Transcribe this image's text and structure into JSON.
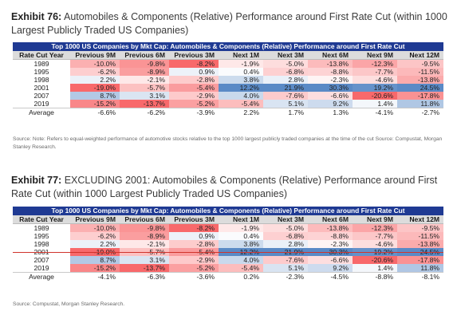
{
  "exhibit76": {
    "title_bold": "Exhibit 76:",
    "title_rest": " Automobiles & Components (Relative) Performance around First Rate Cut (within 1000 Largest Publicly Traded US Companies)",
    "table": {
      "banner": "Top 1000 US Companies by Mkt Cap: Automobiles & Components (Relative) Performance around First Rate Cut",
      "headers": [
        "Rate Cut Year",
        "Previous 9M",
        "Previous 6M",
        "Previous 3M",
        "Next 1M",
        "Next 3M",
        "Next 6M",
        "Next 9M",
        "Next 12M"
      ],
      "rows": [
        [
          "1989",
          "-10.0%",
          "-9.8%",
          "-8.2%",
          "-1.9%",
          "-5.0%",
          "-13.8%",
          "-12.3%",
          "-9.5%"
        ],
        [
          "1995",
          "-6.2%",
          "-8.9%",
          "0.9%",
          "0.4%",
          "-6.8%",
          "-8.8%",
          "-7.7%",
          "-11.5%"
        ],
        [
          "1998",
          "2.2%",
          "-2.1%",
          "-2.8%",
          "3.8%",
          "2.8%",
          "-2.3%",
          "-4.6%",
          "-13.8%"
        ],
        [
          "2001",
          "-19.0%",
          "-5.7%",
          "-5.4%",
          "12.2%",
          "21.9%",
          "30.3%",
          "19.2%",
          "24.5%"
        ],
        [
          "2007",
          "8.7%",
          "3.1%",
          "-2.9%",
          "4.0%",
          "-7.6%",
          "-6.6%",
          "-20.6%",
          "-17.8%"
        ],
        [
          "2019",
          "-15.2%",
          "-13.7%",
          "-5.2%",
          "-5.4%",
          "5.1%",
          "9.2%",
          "1.4%",
          "11.8%"
        ]
      ],
      "average": [
        "Average",
        "-6.6%",
        "-6.2%",
        "-3.9%",
        "2.2%",
        "1.7%",
        "1.3%",
        "-4.1%",
        "-2.7%"
      ]
    },
    "source": "Source: Note: Refers to equal-weighted performance of automotive stocks relative to the top 1000 largest publicly traded companies at the time of the cut Source: Compustat, Morgan Stanley Research."
  },
  "exhibit77": {
    "title_bold": "Exhibit 77:",
    "title_rest": " EXCLUDING 2001: Automobiles & Components (Relative) Performance around First Rate Cut (within 1000 Largest Publicly Traded US Companies)",
    "table": {
      "banner": "Top 1000 US Companies by Mkt Cap: Automobiles & Components (Relative) Performance around First Rate Cut",
      "headers": [
        "Rate Cut Year",
        "Previous 9M",
        "Previous 6M",
        "Previous 3M",
        "Next 1M",
        "Next 3M",
        "Next 6M",
        "Next 9M",
        "Next 12M"
      ],
      "rows": [
        [
          "1989",
          "-10.0%",
          "-9.8%",
          "-8.2%",
          "-1.9%",
          "-5.0%",
          "-13.8%",
          "-12.3%",
          "-9.5%"
        ],
        [
          "1995",
          "-6.2%",
          "-8.9%",
          "0.9%",
          "0.4%",
          "-6.8%",
          "-8.8%",
          "-7.7%",
          "-11.5%"
        ],
        [
          "1998",
          "2.2%",
          "-2.1%",
          "-2.8%",
          "3.8%",
          "2.8%",
          "-2.3%",
          "-4.6%",
          "-13.8%"
        ],
        [
          "2001",
          "-19.0%",
          "-5.7%",
          "-5.4%",
          "12.2%",
          "21.9%",
          "30.3%",
          "19.2%",
          "24.5%"
        ],
        [
          "2007",
          "8.7%",
          "3.1%",
          "-2.9%",
          "4.0%",
          "-7.6%",
          "-6.6%",
          "-20.6%",
          "-17.8%"
        ],
        [
          "2019",
          "-15.2%",
          "-13.7%",
          "-5.2%",
          "-5.4%",
          "5.1%",
          "9.2%",
          "1.4%",
          "11.8%"
        ]
      ],
      "average": [
        "Average",
        "-4.1%",
        "-6.3%",
        "-3.6%",
        "0.2%",
        "-2.3%",
        "-4.5%",
        "-8.8%",
        "-8.1%"
      ],
      "struck_row": "2001"
    },
    "source": "Source: Compustat, Morgan Stanley Research."
  },
  "colors": {
    "banner": "#1f3a93",
    "header": "#dcdcdc",
    "negative": "#f8696b",
    "positive": "#5a8ac6",
    "strike": "#d0342c"
  }
}
